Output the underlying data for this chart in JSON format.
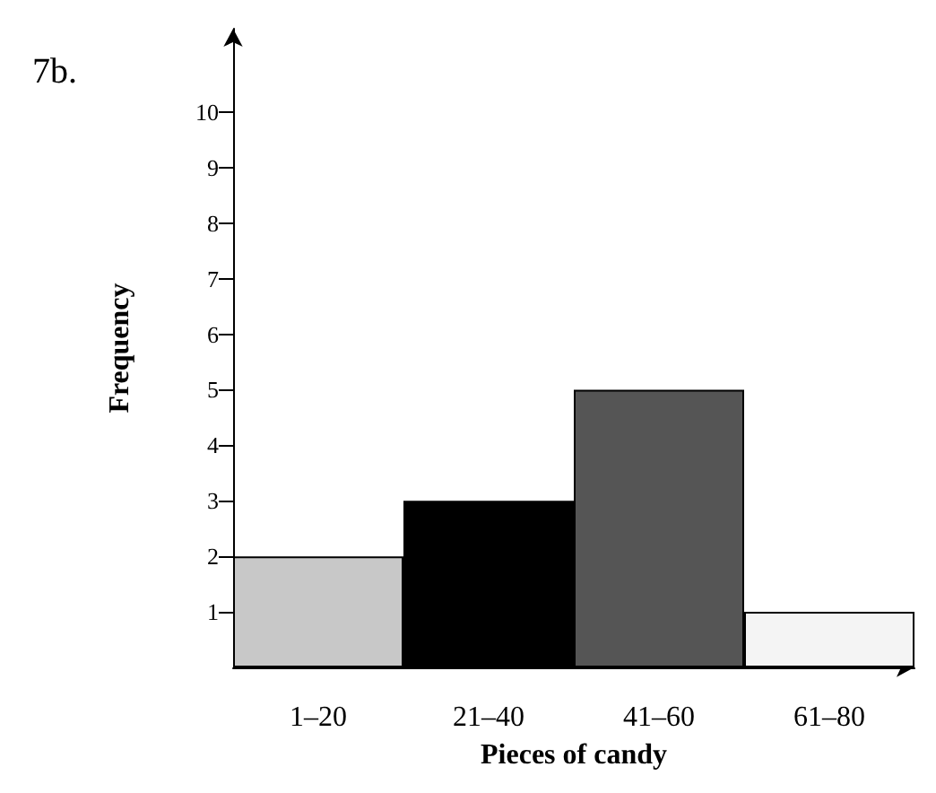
{
  "chart_data": {
    "type": "bar",
    "xlabel": "Pieces of candy",
    "ylabel": "Frequency",
    "annotations": [
      "7b."
    ],
    "categories": [
      "1–20",
      "21–40",
      "41–60",
      "61–80"
    ],
    "values": [
      2,
      3,
      5,
      1
    ],
    "colors": [
      "#c8c8c8",
      "#000000",
      "#555555",
      "#f4f4f4"
    ],
    "ylim": [
      0,
      11.5
    ],
    "yticks": [
      1,
      2,
      3,
      4,
      5,
      6,
      7,
      8,
      9,
      10
    ],
    "grid": false
  }
}
